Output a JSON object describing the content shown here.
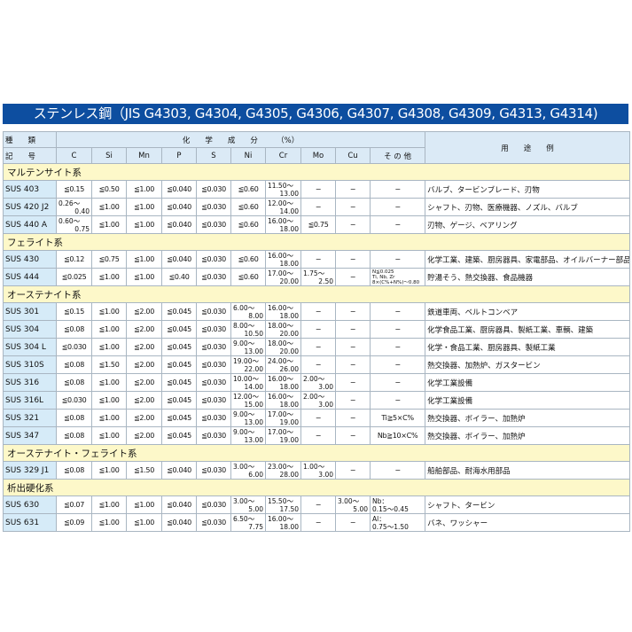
{
  "title": "ステンレス鋼（JIS G4303, G4304, G4305, G4306, G4307, G4308, G4309, G4313, G4314)",
  "header": {
    "type_top": "種　　類",
    "type_bottom": "記　　号",
    "chem": "化　　学　　成　　分　　　（%）",
    "use": "用　　途　　例",
    "cols": [
      "C",
      "Si",
      "Mn",
      "P",
      "S",
      "Ni",
      "Cr",
      "Mo",
      "Cu",
      "そ の 他"
    ]
  },
  "colors": {
    "title_bg": "#0d4ea0",
    "header_bg": "#dbeaf6",
    "name_bg": "#d6ebf8",
    "section_bg": "#fdf8c9"
  },
  "sections": [
    {
      "label": "マルテンサイト系",
      "rows": [
        {
          "name": "SUS 403",
          "vals": [
            "≦0.15",
            "≦0.50",
            "≦1.00",
            "≦0.040",
            "≦0.030",
            "≦0.60",
            [
              "11.50～",
              "13.00"
            ],
            "−",
            "−",
            "−"
          ],
          "use": "バルブ、タービンブレード、刃物"
        },
        {
          "name": "SUS 420 J2",
          "vals": [
            [
              "0.26～",
              "0.40"
            ],
            "≦1.00",
            "≦1.00",
            "≦0.040",
            "≦0.030",
            "≦0.60",
            [
              "12.00～",
              "14.00"
            ],
            "−",
            "−",
            "−"
          ],
          "use": "シャフト、刃物、医療機器、ノズル、バルブ"
        },
        {
          "name": "SUS 440 A",
          "vals": [
            [
              "0.60～",
              "0.75"
            ],
            "≦1.00",
            "≦1.00",
            "≦0.040",
            "≦0.030",
            "≦0.60",
            [
              "16.00～",
              "18.00"
            ],
            "≦0.75",
            "−",
            "−"
          ],
          "use": "刃物、ゲージ、ベアリング"
        }
      ]
    },
    {
      "label": "フェライト系",
      "rows": [
        {
          "name": "SUS 430",
          "vals": [
            "≦0.12",
            "≦0.75",
            "≦1.00",
            "≦0.040",
            "≦0.030",
            "≦0.60",
            [
              "16.00～",
              "18.00"
            ],
            "−",
            "−",
            "−"
          ],
          "use": "化学工業、建築、厨房器具、家電部品、オイルバーナー部品"
        },
        {
          "name": "SUS 444",
          "vals": [
            "≦0.025",
            "≦1.00",
            "≦1.00",
            "≦0.40",
            "≦0.030",
            "≦0.60",
            [
              "17.00～",
              "20.00"
            ],
            [
              "1.75～",
              "2.50"
            ],
            "−",
            {
              "small": [
                "N≦0.025",
                "Ti, Nb, Zr",
                "8×(C%+N%)～0.80"
              ]
            }
          ],
          "use": "貯湯そう、熱交換器、食品機器"
        }
      ]
    },
    {
      "label": "オーステナイト系",
      "rows": [
        {
          "name": "SUS 301",
          "vals": [
            "≦0.15",
            "≦1.00",
            "≦2.00",
            "≦0.045",
            "≦0.030",
            [
              "6.00～",
              "8.00"
            ],
            [
              "16.00～",
              "18.00"
            ],
            "−",
            "−",
            "−"
          ],
          "use": "鉄道車両、ベルトコンベア"
        },
        {
          "name": "SUS 304",
          "vals": [
            "≦0.08",
            "≦1.00",
            "≦2.00",
            "≦0.045",
            "≦0.030",
            [
              "8.00～",
              "10.50"
            ],
            [
              "18.00～",
              "20.00"
            ],
            "−",
            "−",
            "−"
          ],
          "use": "化学食品工業、厨房器具、製紙工業、車輌、建築"
        },
        {
          "name": "SUS 304 L",
          "vals": [
            "≦0.030",
            "≦1.00",
            "≦2.00",
            "≦0.045",
            "≦0.030",
            [
              "9.00～",
              "13.00"
            ],
            [
              "18.00～",
              "20.00"
            ],
            "−",
            "−",
            "−"
          ],
          "use": "化学・食品工業、厨房器具、製紙工業"
        },
        {
          "name": "SUS 310S",
          "vals": [
            "≦0.08",
            "≦1.50",
            "≦2.00",
            "≦0.045",
            "≦0.030",
            [
              "19.00～",
              "22.00"
            ],
            [
              "24.00～",
              "26.00"
            ],
            "−",
            "−",
            "−"
          ],
          "use": "熱交換器、加熱炉、ガスタービン"
        },
        {
          "name": "SUS 316",
          "vals": [
            "≦0.08",
            "≦1.00",
            "≦2.00",
            "≦0.045",
            "≦0.030",
            [
              "10.00～",
              "14.00"
            ],
            [
              "16.00～",
              "18.00"
            ],
            [
              "2.00～",
              "3.00"
            ],
            "−",
            "−"
          ],
          "use": "化学工業設備"
        },
        {
          "name": "SUS 316L",
          "vals": [
            "≦0.030",
            "≦1.00",
            "≦2.00",
            "≦0.045",
            "≦0.030",
            [
              "12.00～",
              "15.00"
            ],
            [
              "16.00～",
              "18.00"
            ],
            [
              "2.00～",
              "3.00"
            ],
            "−",
            "−"
          ],
          "use": "化学工業設備"
        },
        {
          "name": "SUS 321",
          "vals": [
            "≦0.08",
            "≦1.00",
            "≦2.00",
            "≦0.045",
            "≦0.030",
            [
              "9.00～",
              "13.00"
            ],
            [
              "17.00～",
              "19.00"
            ],
            "−",
            "−",
            "Ti≧5×C%"
          ],
          "use": "熱交換器、ボイラー、加熱炉"
        },
        {
          "name": "SUS 347",
          "vals": [
            "≦0.08",
            "≦1.00",
            "≦2.00",
            "≦0.045",
            "≦0.030",
            [
              "9.00～",
              "13.00"
            ],
            [
              "17.00～",
              "19.00"
            ],
            "−",
            "−",
            "Nb≧10×C%"
          ],
          "use": "熱交換器、ボイラー、加熱炉"
        }
      ]
    },
    {
      "label": "オーステナイト・フェライト系",
      "rows": [
        {
          "name": "SUS 329 J1",
          "vals": [
            "≦0.08",
            "≦1.00",
            "≦1.50",
            "≦0.040",
            "≦0.030",
            [
              "3.00～",
              "6.00"
            ],
            [
              "23.00～",
              "28.00"
            ],
            [
              "1.00～",
              "3.00"
            ],
            "−",
            "−"
          ],
          "use": "船舶部品、耐海水用部品"
        }
      ]
    },
    {
      "label": "析出硬化系",
      "rows": [
        {
          "name": "SUS 630",
          "vals": [
            "≦0.07",
            "≦1.00",
            "≦1.00",
            "≦0.040",
            "≦0.030",
            [
              "3.00～",
              "5.00"
            ],
            [
              "15.50～",
              "17.50"
            ],
            "−",
            [
              "3.00～",
              "5.00"
            ],
            {
              "left": [
                "Nb：",
                "0.15～0.45"
              ]
            }
          ],
          "use": "シャフト、タービン"
        },
        {
          "name": "SUS 631",
          "vals": [
            "≦0.09",
            "≦1.00",
            "≦1.00",
            "≦0.040",
            "≦0.030",
            [
              "6.50～",
              "7.75"
            ],
            [
              "16.00～",
              "18.00"
            ],
            "−",
            "−",
            {
              "left": [
                "Al：",
                "0.75～1.50"
              ]
            }
          ],
          "use": "バネ、ワッシャー"
        }
      ]
    }
  ]
}
